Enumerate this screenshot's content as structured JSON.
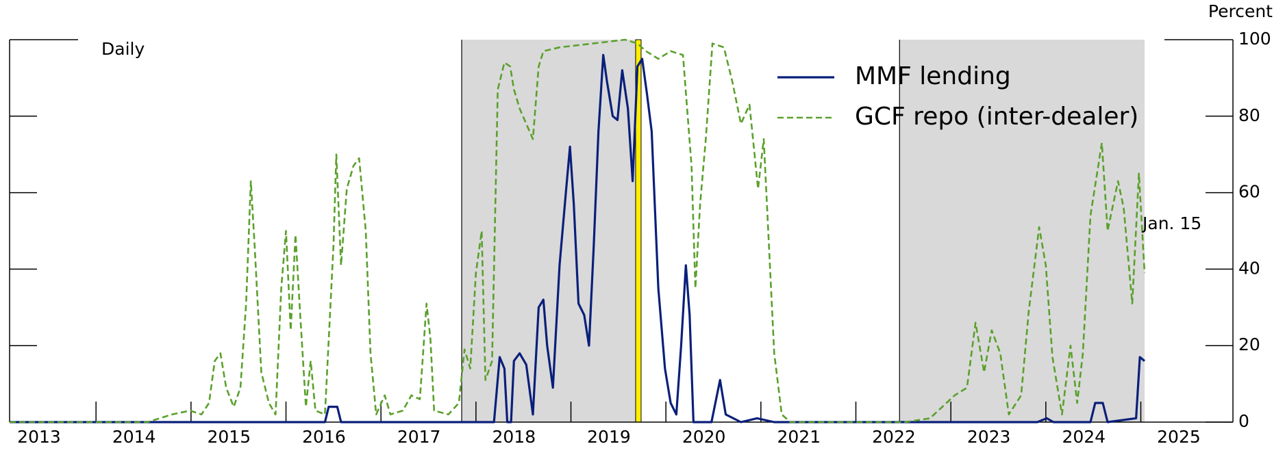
{
  "chart_data": {
    "type": "line",
    "y_axis_label": "Percent",
    "annotations": {
      "frequency": "Daily",
      "end_date": "Jan. 15"
    },
    "xlim": [
      2013.09,
      2025.97
    ],
    "xticks": [
      2013,
      2014,
      2015,
      2016,
      2017,
      2018,
      2019,
      2020,
      2021,
      2022,
      2023,
      2024,
      2025
    ],
    "ylim": [
      0,
      100
    ],
    "yticks": [
      0,
      20,
      40,
      60,
      80,
      100
    ],
    "shaded_periods": [
      [
        2017.85,
        2019.69
      ],
      [
        2022.46,
        2025.04
      ]
    ],
    "shade_color": "#d9d9d9",
    "highlight_x": 2019.71,
    "highlight_color": "#ffee00",
    "series": [
      {
        "name": "MMF lending",
        "color": "#0a1f7a",
        "dashed": false,
        "x": [
          2013.09,
          2016.41,
          2016.45,
          2016.54,
          2016.58,
          2018.19,
          2018.25,
          2018.3,
          2018.33,
          2018.37,
          2018.4,
          2018.46,
          2018.53,
          2018.6,
          2018.66,
          2018.71,
          2018.75,
          2018.81,
          2018.88,
          2018.95,
          2018.99,
          2019.03,
          2019.08,
          2019.14,
          2019.19,
          2019.24,
          2019.29,
          2019.34,
          2019.38,
          2019.44,
          2019.49,
          2019.54,
          2019.6,
          2019.65,
          2019.7,
          2019.75,
          2019.8,
          2019.85,
          2019.92,
          2019.99,
          2020.05,
          2020.11,
          2020.16,
          2020.21,
          2020.25,
          2020.29,
          2020.48,
          2020.57,
          2020.63,
          2020.79,
          2020.96,
          2021.14,
          2023.91,
          2024.01,
          2024.08,
          2024.47,
          2024.52,
          2024.6,
          2024.65,
          2024.95,
          2024.99,
          2025.04
        ],
        "values": [
          0,
          0,
          4,
          4,
          0,
          0,
          17,
          14,
          0,
          0,
          16,
          18,
          15,
          2,
          30,
          32,
          20,
          9,
          41,
          61,
          72,
          57,
          31,
          28,
          20,
          46,
          76,
          96,
          89,
          80,
          79,
          92,
          82,
          63,
          93,
          95,
          86,
          76,
          35,
          14,
          5,
          2,
          20,
          41,
          28,
          0,
          0,
          11,
          2,
          0,
          1,
          0,
          0,
          1,
          0,
          0,
          5,
          5,
          0,
          1,
          17,
          16
        ]
      },
      {
        "name": "GCF repo (inter-dealer)",
        "color": "#5aa02c",
        "dashed": true,
        "x": [
          2013.09,
          2014.54,
          2014.8,
          2014.99,
          2015.11,
          2015.19,
          2015.25,
          2015.31,
          2015.37,
          2015.45,
          2015.52,
          2015.58,
          2015.63,
          2015.67,
          2015.74,
          2015.82,
          2015.89,
          2015.95,
          2016.0,
          2016.05,
          2016.1,
          2016.15,
          2016.21,
          2016.26,
          2016.31,
          2016.41,
          2016.5,
          2016.53,
          2016.58,
          2016.64,
          2016.71,
          2016.77,
          2016.84,
          2016.89,
          2016.95,
          2017.04,
          2017.1,
          2017.23,
          2017.32,
          2017.41,
          2017.48,
          2017.52,
          2017.56,
          2017.71,
          2017.82,
          2017.88,
          2017.94,
          2018.0,
          2018.06,
          2018.1,
          2018.17,
          2018.23,
          2018.3,
          2018.36,
          2018.4,
          2018.46,
          2018.53,
          2018.6,
          2018.66,
          2018.71,
          2018.88,
          2019.23,
          2019.57,
          2019.7,
          2019.79,
          2019.92,
          2020.05,
          2020.18,
          2020.27,
          2020.31,
          2020.36,
          2020.42,
          2020.49,
          2020.61,
          2020.7,
          2020.79,
          2020.88,
          2020.97,
          2021.03,
          2021.14,
          2021.22,
          2021.31,
          2022.52,
          2022.78,
          2023.04,
          2023.17,
          2023.26,
          2023.35,
          2023.43,
          2023.52,
          2023.61,
          2023.74,
          2023.82,
          2023.93,
          2024.0,
          2024.07,
          2024.17,
          2024.26,
          2024.33,
          2024.39,
          2024.47,
          2024.59,
          2024.65,
          2024.76,
          2024.82,
          2024.91,
          2024.98,
          2025.04
        ],
        "values": [
          0,
          0,
          2,
          3,
          2,
          5,
          16,
          18,
          9,
          4,
          9,
          31,
          63,
          46,
          13,
          5,
          2,
          35,
          50,
          24,
          49,
          28,
          4,
          16,
          3,
          2,
          46,
          70,
          41,
          61,
          67,
          69,
          50,
          18,
          2,
          7,
          2,
          3,
          7,
          6,
          31,
          22,
          3,
          2,
          5,
          19,
          14,
          39,
          50,
          11,
          16,
          87,
          94,
          93,
          87,
          82,
          78,
          74,
          93,
          97,
          98,
          99,
          100,
          99,
          97,
          95,
          97,
          96,
          67,
          35,
          57,
          74,
          99,
          98,
          89,
          78,
          83,
          61,
          74,
          18,
          2,
          0,
          0,
          1,
          7,
          9,
          26,
          13,
          24,
          18,
          2,
          7,
          29,
          51,
          41,
          17,
          2,
          20,
          5,
          18,
          54,
          73,
          50,
          63,
          56,
          31,
          65,
          39
        ]
      }
    ]
  }
}
